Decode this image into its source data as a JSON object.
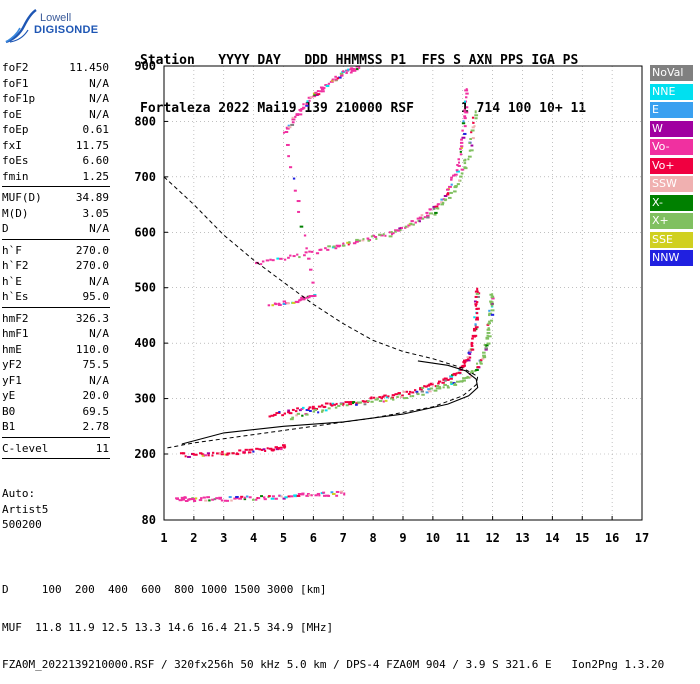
{
  "logo": {
    "line1": "Lowell",
    "line2": "DIGISONDE"
  },
  "header": {
    "line1": "Station   YYYY DAY   DDD HHMMSS P1  FFS S AXN PPS IGA PS",
    "line2": "Fortaleza 2022 Mai19 139 210000 RSF      1 714 100 10+ 11"
  },
  "params": {
    "group1": [
      {
        "k": "foF2",
        "v": "11.450"
      },
      {
        "k": "foF1",
        "v": "N/A"
      },
      {
        "k": "foF1p",
        "v": "N/A"
      },
      {
        "k": "foE",
        "v": "N/A"
      },
      {
        "k": "foEp",
        "v": "0.61"
      },
      {
        "k": "fxI",
        "v": "11.75"
      },
      {
        "k": "foEs",
        "v": "6.60"
      },
      {
        "k": "fmin",
        "v": "1.25"
      }
    ],
    "group2": [
      {
        "k": "MUF(D)",
        "v": "34.89"
      },
      {
        "k": "M(D)",
        "v": "3.05"
      },
      {
        "k": "D",
        "v": "N/A"
      }
    ],
    "group3": [
      {
        "k": "h`F",
        "v": "270.0"
      },
      {
        "k": "h`F2",
        "v": "270.0"
      },
      {
        "k": "h`E",
        "v": "N/A"
      },
      {
        "k": "h`Es",
        "v": "95.0"
      }
    ],
    "group4": [
      {
        "k": "hmF2",
        "v": "326.3"
      },
      {
        "k": "hmF1",
        "v": "N/A"
      },
      {
        "k": "hmE",
        "v": "110.0"
      },
      {
        "k": "yF2",
        "v": "75.5"
      },
      {
        "k": "yF1",
        "v": "N/A"
      },
      {
        "k": "yE",
        "v": "20.0"
      },
      {
        "k": "B0",
        "v": "69.5"
      },
      {
        "k": "B1",
        "v": "2.78"
      }
    ],
    "group5": [
      {
        "k": "C-level",
        "v": "11"
      }
    ]
  },
  "auto": {
    "l1": "Auto:",
    "l2": "Artist5",
    "l3": "500200"
  },
  "legend": [
    {
      "label": "NoVal",
      "color": "#808080"
    },
    {
      "label": "NNE",
      "color": "#00e0f0"
    },
    {
      "label": "E",
      "color": "#3aa0f0"
    },
    {
      "label": "W",
      "color": "#a000a0"
    },
    {
      "label": "Vo-",
      "color": "#f030a0"
    },
    {
      "label": "Vo+",
      "color": "#f00040"
    },
    {
      "label": "SSW",
      "color": "#f0b0b0"
    },
    {
      "label": "X-",
      "color": "#008000"
    },
    {
      "label": "X+",
      "color": "#80c060"
    },
    {
      "label": "SSE",
      "color": "#d0d020"
    },
    {
      "label": "NNW",
      "color": "#2020e0"
    }
  ],
  "footer": {
    "line1": "D     100  200  400  600  800 1000 1500 3000 [km]",
    "line2": "MUF  11.8 11.9 12.5 13.3 14.6 16.4 21.5 34.9 [MHz]",
    "line3": "FZA0M_2022139210000.RSF / 320fx256h 50 kHz 5.0 km / DPS-4 FZA0M 904 / 3.9 S 321.6 E   Ion2Png 1.3.20"
  },
  "chart_data": {
    "type": "scatter",
    "x_ticks": [
      1,
      2,
      3,
      4,
      5,
      6,
      7,
      8,
      9,
      10,
      11,
      12,
      13,
      14,
      15,
      16,
      17
    ],
    "y_ticks": [
      80,
      200,
      300,
      400,
      500,
      600,
      700,
      800,
      900
    ],
    "xlim": [
      1,
      17
    ],
    "ylim": [
      80,
      900
    ],
    "y_scale": "piecewise",
    "grid": "dotted",
    "legend_position": "right",
    "series": [
      {
        "trace": "O-trace F2",
        "color": "#f00040",
        "points": [
          [
            4.5,
            270
          ],
          [
            5.5,
            282
          ],
          [
            6.5,
            290
          ],
          [
            7.5,
            297
          ],
          [
            8.5,
            305
          ],
          [
            9.5,
            318
          ],
          [
            10.3,
            332
          ],
          [
            10.8,
            348
          ],
          [
            11.1,
            370
          ],
          [
            11.3,
            400
          ],
          [
            11.4,
            450
          ],
          [
            11.45,
            500
          ]
        ]
      },
      {
        "trace": "X-trace F2",
        "color": "#80c060",
        "points": [
          [
            5.2,
            268
          ],
          [
            6.5,
            285
          ],
          [
            8,
            297
          ],
          [
            9.5,
            310
          ],
          [
            10.5,
            325
          ],
          [
            11.2,
            342
          ],
          [
            11.6,
            370
          ],
          [
            11.8,
            410
          ],
          [
            11.9,
            460
          ],
          [
            11.95,
            490
          ]
        ]
      },
      {
        "trace": "2nd hop F2",
        "color": "#f030a0",
        "points": [
          [
            4,
            545
          ],
          [
            5.5,
            560
          ],
          [
            7,
            580
          ],
          [
            8.5,
            600
          ],
          [
            9.5,
            625
          ],
          [
            10.3,
            660
          ],
          [
            10.8,
            720
          ],
          [
            11.0,
            790
          ],
          [
            11.1,
            860
          ]
        ]
      },
      {
        "trace": "2nd hop X",
        "color": "#80c060",
        "points": [
          [
            6.5,
            575
          ],
          [
            8.5,
            598
          ],
          [
            10,
            635
          ],
          [
            10.8,
            690
          ],
          [
            11.2,
            750
          ],
          [
            11.4,
            820
          ]
        ]
      },
      {
        "trace": "Es",
        "color": "#f030a0",
        "points": [
          [
            1.4,
            120
          ],
          [
            2,
            120
          ],
          [
            3,
            120
          ],
          [
            4,
            122
          ],
          [
            5,
            124
          ],
          [
            6,
            128
          ],
          [
            7,
            130
          ]
        ]
      },
      {
        "trace": "Es 2nd",
        "color": "#f00040",
        "points": [
          [
            1.5,
            200
          ],
          [
            2.5,
            200
          ],
          [
            3.5,
            205
          ],
          [
            4.5,
            210
          ],
          [
            5,
            215
          ]
        ]
      },
      {
        "trace": "Upper",
        "color": "#f030a0",
        "points": [
          [
            4.5,
            470
          ],
          [
            5.5,
            480
          ],
          [
            6,
            490
          ],
          [
            5,
            780
          ],
          [
            5.5,
            820
          ],
          [
            6,
            850
          ],
          [
            6.5,
            870
          ],
          [
            7,
            890
          ],
          [
            7.5,
            900
          ]
        ]
      }
    ],
    "profile": {
      "solid": [
        [
          1.6,
          218
        ],
        [
          3,
          238
        ],
        [
          5,
          250
        ],
        [
          7,
          258
        ],
        [
          9,
          272
        ],
        [
          10.5,
          290
        ],
        [
          11.2,
          305
        ],
        [
          11.5,
          320
        ],
        [
          11.45,
          335
        ],
        [
          11.1,
          350
        ],
        [
          10.5,
          360
        ],
        [
          9.5,
          368
        ]
      ],
      "dashed": [
        [
          1,
          700
        ],
        [
          2,
          650
        ],
        [
          3,
          595
        ],
        [
          4,
          550
        ],
        [
          5,
          510
        ],
        [
          6,
          470
        ],
        [
          7,
          435
        ],
        [
          8,
          405
        ],
        [
          9,
          385
        ],
        [
          10,
          372
        ],
        [
          11,
          355
        ],
        [
          11.5,
          340
        ],
        [
          11.45,
          325
        ],
        [
          11,
          305
        ],
        [
          10,
          285
        ],
        [
          8,
          265
        ],
        [
          6,
          250
        ],
        [
          4,
          235
        ],
        [
          2,
          220
        ],
        [
          1,
          210
        ]
      ]
    }
  }
}
